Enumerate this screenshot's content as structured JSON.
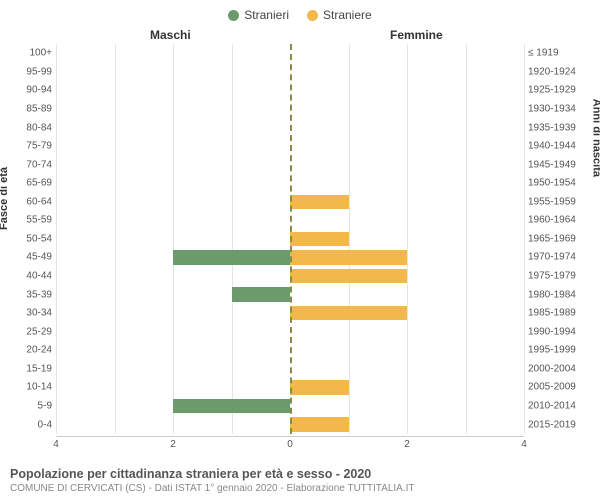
{
  "chart": {
    "type": "population-pyramid",
    "legend": [
      {
        "label": "Stranieri",
        "color": "#6b9a6b"
      },
      {
        "label": "Straniere",
        "color": "#f2b84b"
      }
    ],
    "header_left": "Maschi",
    "header_right": "Femmine",
    "y_title_left": "Fasce di età",
    "y_title_right": "Anni di nascita",
    "x_max": 4,
    "x_ticks": [
      4,
      2,
      0,
      2,
      4
    ],
    "background_color": "#ffffff",
    "grid_color": "#e5e5e5",
    "rows": [
      {
        "age": "100+",
        "birth": "≤ 1919",
        "m": 0,
        "f": 0
      },
      {
        "age": "95-99",
        "birth": "1920-1924",
        "m": 0,
        "f": 0
      },
      {
        "age": "90-94",
        "birth": "1925-1929",
        "m": 0,
        "f": 0
      },
      {
        "age": "85-89",
        "birth": "1930-1934",
        "m": 0,
        "f": 0
      },
      {
        "age": "80-84",
        "birth": "1935-1939",
        "m": 0,
        "f": 0
      },
      {
        "age": "75-79",
        "birth": "1940-1944",
        "m": 0,
        "f": 0
      },
      {
        "age": "70-74",
        "birth": "1945-1949",
        "m": 0,
        "f": 0
      },
      {
        "age": "65-69",
        "birth": "1950-1954",
        "m": 0,
        "f": 0
      },
      {
        "age": "60-64",
        "birth": "1955-1959",
        "m": 0,
        "f": 1
      },
      {
        "age": "55-59",
        "birth": "1960-1964",
        "m": 0,
        "f": 0
      },
      {
        "age": "50-54",
        "birth": "1965-1969",
        "m": 0,
        "f": 1
      },
      {
        "age": "45-49",
        "birth": "1970-1974",
        "m": 2,
        "f": 2
      },
      {
        "age": "40-44",
        "birth": "1975-1979",
        "m": 0,
        "f": 2
      },
      {
        "age": "35-39",
        "birth": "1980-1984",
        "m": 1,
        "f": 0
      },
      {
        "age": "30-34",
        "birth": "1985-1989",
        "m": 0,
        "f": 2
      },
      {
        "age": "25-29",
        "birth": "1990-1994",
        "m": 0,
        "f": 0
      },
      {
        "age": "20-24",
        "birth": "1995-1999",
        "m": 0,
        "f": 0
      },
      {
        "age": "15-19",
        "birth": "2000-2004",
        "m": 0,
        "f": 0
      },
      {
        "age": "10-14",
        "birth": "2005-2009",
        "m": 0,
        "f": 1
      },
      {
        "age": "5-9",
        "birth": "2010-2014",
        "m": 2,
        "f": 0
      },
      {
        "age": "0-4",
        "birth": "2015-2019",
        "m": 0,
        "f": 1
      }
    ],
    "bar_color_m": "#6b9a6b",
    "bar_color_f": "#f2b84b",
    "center_line_color": "#8a8a48"
  },
  "footer": {
    "title": "Popolazione per cittadinanza straniera per età e sesso - 2020",
    "subtitle": "COMUNE DI CERVICATI (CS) - Dati ISTAT 1° gennaio 2020 - Elaborazione TUTTITALIA.IT"
  }
}
